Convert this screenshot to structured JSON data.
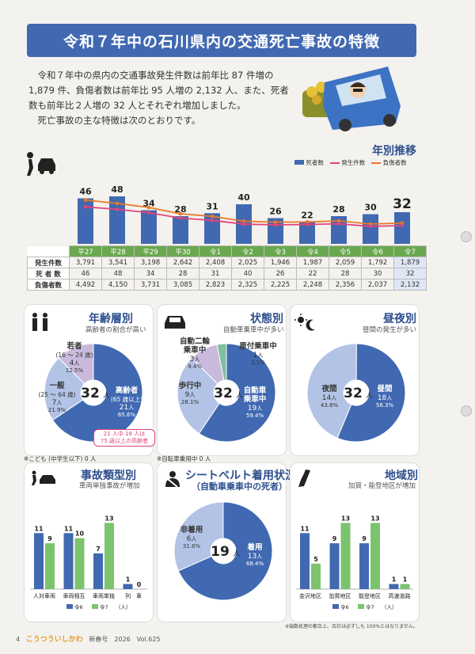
{
  "title": "令和７年中の石川県内の交通死亡事故の特徴",
  "intro": [
    "令和７年中の県内の交通事故発生件数は前年比 87 件増の 1,879 件、負傷者数は前年比 95 人増の 2,132 人、また、死者数も前年比２人増の 32 人とそれぞれ増加しました。",
    "死亡事故の主な特徴は次のとおりです。"
  ],
  "yearly": {
    "title": "年別推移",
    "legend": [
      "死者数",
      "発生件数",
      "負傷者数"
    ],
    "years": [
      "平27",
      "平28",
      "平29",
      "平30",
      "令1",
      "令2",
      "令3",
      "令4",
      "令5",
      "令6",
      "令7"
    ],
    "deaths": [
      46,
      48,
      34,
      28,
      31,
      40,
      26,
      22,
      28,
      30,
      32
    ],
    "accidents": [
      3791,
      3541,
      3198,
      2642,
      2408,
      2025,
      1946,
      1987,
      2059,
      1792,
      1879
    ],
    "injured": [
      4492,
      4150,
      3731,
      3085,
      2823,
      2325,
      2225,
      2248,
      2356,
      2037,
      2132
    ],
    "row_labels": [
      "発生件数",
      "死 者 数",
      "負傷者数"
    ],
    "accidents_text": [
      "3,791",
      "3,541",
      "3,198",
      "2,642",
      "2,408",
      "2,025",
      "1,946",
      "1,987",
      "2,059",
      "1,792",
      "1,879"
    ],
    "deaths_text": [
      "46",
      "48",
      "34",
      "28",
      "31",
      "40",
      "26",
      "22",
      "28",
      "30",
      "32"
    ],
    "injured_text": [
      "4,492",
      "4,150",
      "3,731",
      "3,085",
      "2,823",
      "2,325",
      "2,225",
      "2,248",
      "2,356",
      "2,037",
      "2,132"
    ],
    "colors": {
      "bar": "#4169b1",
      "accidents": "#e0457b",
      "injured": "#e8782a"
    }
  },
  "age": {
    "title": "年齢層別",
    "sub": "高齢者の割合が高い",
    "center": "32",
    "center_unit": "人",
    "slices": [
      {
        "name": "高齢者",
        "range": "(65 歳以上)",
        "value": "21",
        "unit": "人",
        "pct": "65.6%",
        "frac": 0.656,
        "color": "#4169b1"
      },
      {
        "name": "一般",
        "range": "(25 ～ 64 歳)",
        "value": "7",
        "unit": "人",
        "pct": "21.9%",
        "frac": 0.219,
        "color": "#b3c3e6"
      },
      {
        "name": "若者",
        "range": "(16 ～ 24 歳)",
        "value": "4",
        "unit": "人",
        "pct": "12.5%",
        "frac": 0.125,
        "color": "#c9b9dc"
      }
    ],
    "callout": [
      "21 人中 18 人は",
      "75 歳以上の高齢者"
    ],
    "note": "※こども (中学生以下) 0 人"
  },
  "status": {
    "title": "状態別",
    "sub": "自動車乗車中が多い",
    "center": "32",
    "center_unit": "人",
    "slices": [
      {
        "name": "自動車乗車中",
        "value": "19",
        "unit": "人",
        "pct": "59.4%",
        "frac": 0.594,
        "color": "#4169b1"
      },
      {
        "name": "歩行中",
        "value": "9",
        "unit": "人",
        "pct": "28.1%",
        "frac": 0.281,
        "color": "#b3c3e6"
      },
      {
        "name": "自動二輪乗車中",
        "value": "3",
        "unit": "人",
        "pct": "9.4%",
        "frac": 0.094,
        "color": "#c9b9dc"
      },
      {
        "name": "原付乗車中",
        "value": "1",
        "unit": "人",
        "pct": "3.1%",
        "frac": 0.031,
        "color": "#7fbf9f"
      }
    ],
    "note": "※自転車乗用中 0 人"
  },
  "daynight": {
    "title": "昼夜別",
    "sub": "昼間の発生が多い",
    "center": "32",
    "center_unit": "人",
    "slices": [
      {
        "name": "昼間",
        "value": "18",
        "unit": "人",
        "pct": "56.3%",
        "frac": 0.563,
        "color": "#4169b1"
      },
      {
        "name": "夜間",
        "value": "14",
        "unit": "人",
        "pct": "43.8%",
        "frac": 0.438,
        "color": "#b3c3e6"
      }
    ]
  },
  "type": {
    "title": "事故類型別",
    "sub": "車両単独事故が増加",
    "categories": [
      "人対車両",
      "車両相互",
      "車両単独",
      "列　車"
    ],
    "r6": [
      11,
      11,
      7,
      1
    ],
    "r7": [
      9,
      10,
      13,
      0
    ],
    "legend": [
      "令6",
      "令7",
      "（人）"
    ]
  },
  "belt": {
    "title": "シートベルト着用状況",
    "title2": "（自動車乗車中の死者）",
    "center": "19",
    "center_unit": "人",
    "slices": [
      {
        "name": "着用",
        "value": "13",
        "unit": "人",
        "pct": "68.4%",
        "frac": 0.684,
        "color": "#4169b1"
      },
      {
        "name": "非着用",
        "value": "6",
        "unit": "人",
        "pct": "31.6%",
        "frac": 0.316,
        "color": "#b3c3e6"
      }
    ]
  },
  "region": {
    "title": "地域別",
    "sub": "加賀・能登地区が増加",
    "categories": [
      "金沢地区",
      "加賀地区",
      "能登地区",
      "高速道路"
    ],
    "r6": [
      11,
      9,
      9,
      1
    ],
    "r7": [
      5,
      13,
      13,
      1
    ],
    "legend": [
      "令6",
      "令7",
      "（人）"
    ],
    "note": "※端数処理の都合上、合計は必ずしも 100%とはなりません。"
  },
  "footer": {
    "page": "4",
    "logo": "こうつういしかわ",
    "issue": "新春号　2026　Vol.625"
  }
}
